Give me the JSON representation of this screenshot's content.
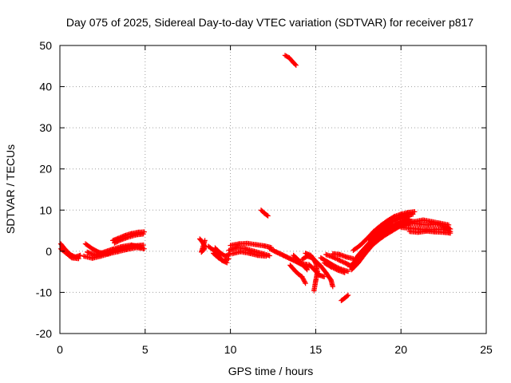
{
  "chart_data": {
    "type": "scatter",
    "title": "Day 075 of 2025, Sidereal Day-to-day VTEC variation (SDTVAR) for receiver p817",
    "xlabel": "GPS time / hours",
    "ylabel": "SDTVAR / TECUs",
    "xlim": [
      0,
      25
    ],
    "ylim": [
      -20,
      50
    ],
    "x_ticks": [
      0,
      5,
      10,
      15,
      20,
      25
    ],
    "y_ticks": [
      -20,
      -10,
      0,
      10,
      20,
      30,
      40,
      50
    ],
    "x_tick_labels": [
      "0",
      "5",
      "10",
      "15",
      "20",
      "25"
    ],
    "y_tick_labels": [
      "-20",
      "-10",
      "0",
      "10",
      "20",
      "30",
      "40",
      "50"
    ],
    "grid": true,
    "marker": "+",
    "series": [
      {
        "name": "SDTVAR",
        "color": "#ff0000",
        "segments": [
          [
            [
              0.05,
              1.8
            ],
            [
              0.3,
              0.5
            ],
            [
              0.6,
              -0.8
            ],
            [
              0.9,
              -1.4
            ],
            [
              1.2,
              -1.0
            ]
          ],
          [
            [
              0.05,
              0.6
            ],
            [
              0.35,
              -0.4
            ],
            [
              0.7,
              -1.6
            ],
            [
              1.1,
              -1.8
            ]
          ],
          [
            [
              1.5,
              1.8
            ],
            [
              1.9,
              0.6
            ],
            [
              2.3,
              -0.3
            ],
            [
              2.8,
              -0.6
            ],
            [
              3.3,
              0.4
            ],
            [
              3.8,
              0.9
            ],
            [
              4.3,
              1.3
            ],
            [
              4.9,
              1.5
            ]
          ],
          [
            [
              1.4,
              -1.2
            ],
            [
              1.9,
              -1.7
            ],
            [
              2.4,
              -1.2
            ],
            [
              2.9,
              -0.6
            ],
            [
              3.4,
              -0.1
            ],
            [
              3.9,
              0.4
            ],
            [
              4.5,
              0.9
            ],
            [
              4.95,
              0.6
            ]
          ],
          [
            [
              1.6,
              -0.2
            ],
            [
              2.1,
              -1.0
            ],
            [
              2.6,
              -0.2
            ],
            [
              3.1,
              0.5
            ],
            [
              3.6,
              1.1
            ],
            [
              4.2,
              1.5
            ],
            [
              4.8,
              1.0
            ]
          ],
          [
            [
              3.1,
              2.6
            ],
            [
              3.4,
              3.1
            ],
            [
              3.8,
              3.8
            ],
            [
              4.2,
              4.3
            ],
            [
              4.6,
              4.6
            ],
            [
              4.95,
              4.7
            ]
          ],
          [
            [
              3.2,
              2.0
            ],
            [
              3.6,
              2.8
            ],
            [
              4.0,
              3.4
            ],
            [
              4.5,
              4.0
            ],
            [
              4.9,
              4.2
            ]
          ],
          [
            [
              8.2,
              3.0
            ],
            [
              8.35,
              2.3
            ],
            [
              8.5,
              1.2
            ],
            [
              8.45,
              0.4
            ],
            [
              8.3,
              -0.2
            ],
            [
              8.5,
              2.6
            ]
          ],
          [
            [
              8.7,
              1.2
            ],
            [
              9.0,
              0.3
            ],
            [
              9.3,
              -1.0
            ],
            [
              9.5,
              -2.2
            ],
            [
              9.8,
              -2.8
            ]
          ],
          [
            [
              9.0,
              -0.5
            ],
            [
              9.3,
              -1.6
            ],
            [
              9.6,
              -2.4
            ],
            [
              9.9,
              -1.8
            ]
          ],
          [
            [
              9.1,
              0.8
            ],
            [
              9.4,
              -0.4
            ],
            [
              9.7,
              -1.2
            ],
            [
              10.0,
              -0.6
            ]
          ],
          [
            [
              10.0,
              1.4
            ],
            [
              10.5,
              1.8
            ],
            [
              11.0,
              1.9
            ],
            [
              11.5,
              1.6
            ],
            [
              12.0,
              1.3
            ],
            [
              12.4,
              0.9
            ]
          ],
          [
            [
              9.9,
              0.2
            ],
            [
              10.4,
              0.9
            ],
            [
              10.9,
              0.6
            ],
            [
              11.4,
              0.0
            ],
            [
              11.9,
              -0.6
            ],
            [
              12.3,
              -1.1
            ]
          ],
          [
            [
              10.1,
              -0.6
            ],
            [
              10.6,
              -0.1
            ],
            [
              11.1,
              -0.5
            ],
            [
              11.6,
              -1.0
            ],
            [
              12.1,
              -1.2
            ]
          ],
          [
            [
              11.8,
              10.0
            ],
            [
              12.0,
              9.2
            ],
            [
              12.2,
              8.6
            ]
          ],
          [
            [
              13.2,
              47.6
            ],
            [
              13.45,
              47.0
            ],
            [
              13.7,
              45.8
            ],
            [
              13.85,
              45.2
            ]
          ],
          [
            [
              12.3,
              0.6
            ],
            [
              12.7,
              -0.2
            ],
            [
              13.1,
              -1.0
            ],
            [
              13.5,
              -1.8
            ],
            [
              13.9,
              -2.6
            ],
            [
              14.3,
              -3.5
            ],
            [
              14.6,
              -3.8
            ]
          ],
          [
            [
              12.5,
              0.2
            ],
            [
              12.9,
              -0.6
            ],
            [
              13.3,
              -1.4
            ],
            [
              13.7,
              -2.2
            ],
            [
              14.1,
              -3.0
            ],
            [
              14.5,
              -3.2
            ]
          ],
          [
            [
              13.5,
              -3.4
            ],
            [
              13.8,
              -4.8
            ],
            [
              14.0,
              -5.6
            ],
            [
              14.2,
              -6.2
            ],
            [
              14.4,
              -7.8
            ]
          ],
          [
            [
              13.7,
              -1.0
            ],
            [
              14.0,
              -2.2
            ],
            [
              14.3,
              -3.6
            ],
            [
              14.5,
              -4.5
            ]
          ],
          [
            [
              14.2,
              -2.0
            ],
            [
              14.5,
              -1.2
            ],
            [
              14.8,
              -1.6
            ],
            [
              15.0,
              -2.8
            ],
            [
              15.1,
              -5.0
            ],
            [
              15.0,
              -7.2
            ],
            [
              14.9,
              -9.6
            ]
          ],
          [
            [
              14.4,
              -0.5
            ],
            [
              14.7,
              -1.0
            ],
            [
              14.95,
              -2.2
            ],
            [
              15.3,
              -3.6
            ],
            [
              15.6,
              -5.2
            ],
            [
              15.9,
              -7.0
            ],
            [
              16.0,
              -8.6
            ]
          ],
          [
            [
              14.6,
              -3.2
            ],
            [
              14.9,
              -4.4
            ],
            [
              15.2,
              -5.8
            ],
            [
              15.5,
              -6.2
            ]
          ],
          [
            [
              15.3,
              -1.6
            ],
            [
              15.7,
              -2.6
            ],
            [
              16.1,
              -3.6
            ],
            [
              16.5,
              -4.4
            ],
            [
              16.9,
              -4.9
            ]
          ],
          [
            [
              15.5,
              -2.8
            ],
            [
              15.9,
              -3.8
            ],
            [
              16.3,
              -4.6
            ],
            [
              16.7,
              -5.2
            ]
          ],
          [
            [
              15.6,
              -0.8
            ],
            [
              16.0,
              -1.4
            ],
            [
              16.4,
              -2.2
            ],
            [
              16.8,
              -3.0
            ],
            [
              17.1,
              -3.6
            ]
          ],
          [
            [
              16.0,
              -0.6
            ],
            [
              16.4,
              -0.8
            ],
            [
              16.8,
              -1.4
            ],
            [
              17.2,
              -1.8
            ]
          ],
          [
            [
              16.5,
              -12.0
            ],
            [
              16.7,
              -11.4
            ],
            [
              16.9,
              -10.7
            ]
          ],
          [
            [
              17.0,
              -3.8
            ],
            [
              17.4,
              -2.0
            ],
            [
              17.8,
              0.2
            ],
            [
              18.2,
              2.2
            ],
            [
              18.6,
              3.6
            ],
            [
              19.0,
              4.8
            ],
            [
              19.4,
              5.8
            ],
            [
              19.8,
              6.6
            ],
            [
              20.2,
              7.3
            ],
            [
              20.5,
              7.8
            ]
          ],
          [
            [
              17.1,
              -4.5
            ],
            [
              17.5,
              -2.8
            ],
            [
              17.9,
              -0.6
            ],
            [
              18.3,
              1.4
            ],
            [
              18.7,
              2.8
            ],
            [
              19.1,
              4.0
            ],
            [
              19.5,
              5.0
            ],
            [
              19.9,
              6.0
            ],
            [
              20.3,
              6.6
            ],
            [
              20.6,
              7.0
            ]
          ],
          [
            [
              17.3,
              -2.0
            ],
            [
              17.7,
              0.0
            ],
            [
              18.1,
              1.8
            ],
            [
              18.5,
              3.2
            ],
            [
              18.9,
              4.4
            ],
            [
              19.3,
              5.6
            ],
            [
              19.7,
              6.4
            ],
            [
              20.1,
              7.0
            ],
            [
              20.4,
              7.4
            ]
          ],
          [
            [
              17.2,
              0.2
            ],
            [
              17.6,
              1.4
            ],
            [
              18.0,
              3.0
            ],
            [
              18.4,
              4.8
            ],
            [
              18.8,
              6.2
            ],
            [
              19.2,
              7.4
            ],
            [
              19.6,
              8.4
            ],
            [
              20.0,
              9.0
            ],
            [
              20.4,
              9.4
            ],
            [
              20.8,
              9.6
            ]
          ],
          [
            [
              17.5,
              -1.0
            ],
            [
              17.9,
              0.8
            ],
            [
              18.3,
              2.8
            ],
            [
              18.7,
              4.6
            ],
            [
              19.1,
              6.0
            ],
            [
              19.5,
              7.2
            ],
            [
              19.9,
              8.0
            ],
            [
              20.3,
              8.6
            ],
            [
              20.7,
              9.0
            ]
          ],
          [
            [
              18.1,
              2.8
            ],
            [
              18.5,
              4.2
            ],
            [
              18.9,
              5.8
            ],
            [
              19.3,
              6.8
            ],
            [
              19.7,
              7.6
            ],
            [
              20.1,
              8.0
            ],
            [
              20.5,
              8.4
            ]
          ],
          [
            [
              20.0,
              5.8
            ],
            [
              20.5,
              5.6
            ],
            [
              21.0,
              5.4
            ],
            [
              21.5,
              5.2
            ],
            [
              22.0,
              5.3
            ],
            [
              22.5,
              5.4
            ],
            [
              22.9,
              4.8
            ]
          ],
          [
            [
              20.1,
              6.6
            ],
            [
              20.6,
              6.8
            ],
            [
              21.1,
              6.6
            ],
            [
              21.6,
              6.4
            ],
            [
              22.1,
              6.6
            ],
            [
              22.6,
              6.0
            ],
            [
              22.9,
              5.4
            ]
          ],
          [
            [
              20.3,
              7.4
            ],
            [
              20.8,
              7.2
            ],
            [
              21.3,
              7.6
            ],
            [
              21.8,
              7.2
            ],
            [
              22.3,
              6.8
            ],
            [
              22.8,
              6.4
            ]
          ],
          [
            [
              20.5,
              4.8
            ],
            [
              21.0,
              4.6
            ],
            [
              21.5,
              4.9
            ],
            [
              22.0,
              4.7
            ],
            [
              22.5,
              4.6
            ],
            [
              22.9,
              4.4
            ]
          ]
        ]
      }
    ]
  }
}
